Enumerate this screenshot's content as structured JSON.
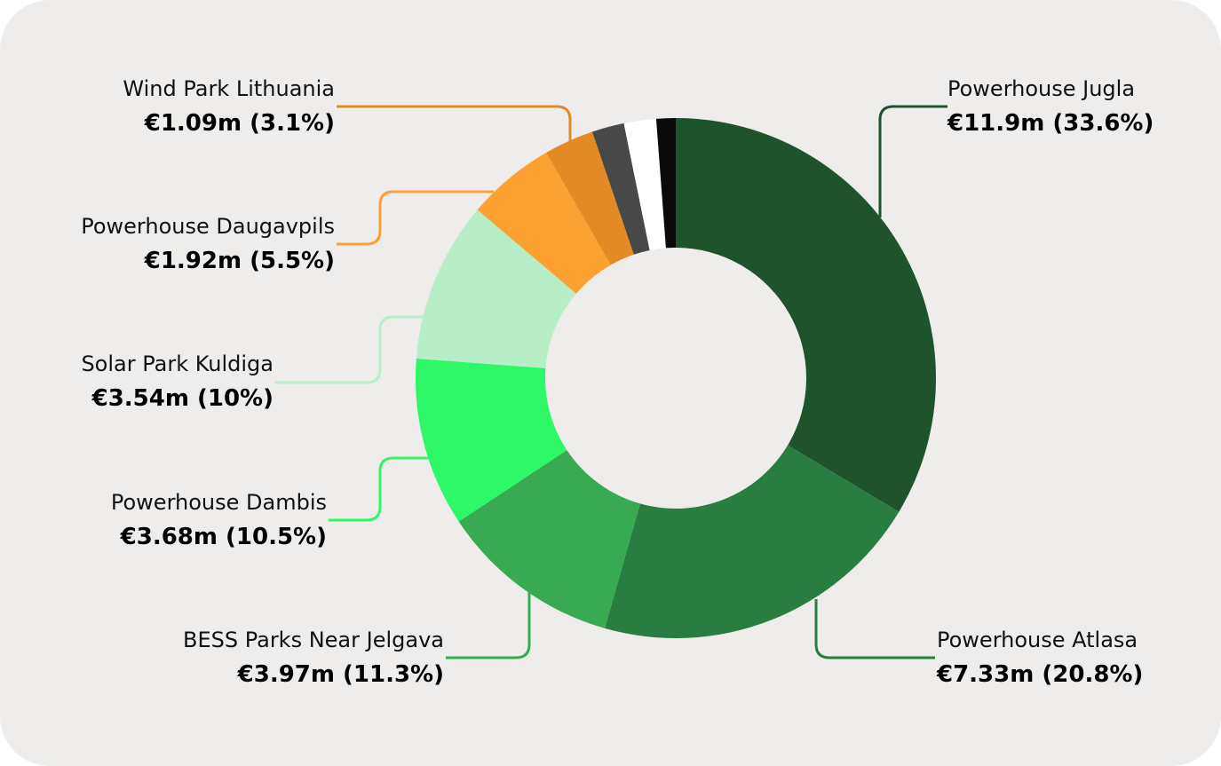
{
  "chart_data": {
    "type": "pie",
    "donut": true,
    "slices": [
      {
        "label": "Powerhouse Jugla",
        "value_text": "€11.9m (33.6%)",
        "value": 11.9,
        "percent": 33.6,
        "color": "#1f532e"
      },
      {
        "label": "Powerhouse Atlasa",
        "value_text": "€7.33m (20.8%)",
        "value": 7.33,
        "percent": 20.8,
        "color": "#2a7d41"
      },
      {
        "label": "BESS Parks Near Jelgava",
        "value_text": "€3.97m (11.3%)",
        "value": 3.97,
        "percent": 11.3,
        "color": "#37aa52"
      },
      {
        "label": "Powerhouse Dambis",
        "value_text": "€3.68m (10.5%)",
        "value": 3.68,
        "percent": 10.5,
        "color": "#2ef868"
      },
      {
        "label": "Solar Park Kuldiga",
        "value_text": "€3.54m (10%)",
        "value": 3.54,
        "percent": 10.0,
        "color": "#b8eec7"
      },
      {
        "label": "Powerhouse Daugavpils",
        "value_text": "€1.92m (5.5%)",
        "value": 1.92,
        "percent": 5.5,
        "color": "#fca131"
      },
      {
        "label": "Wind Park Lithuania",
        "value_text": "€1.09m (3.1%)",
        "value": 1.09,
        "percent": 3.1,
        "color": "#e48a24"
      },
      {
        "label": "",
        "value_text": "",
        "value": null,
        "percent": 2.0,
        "color": "#484848"
      },
      {
        "label": "",
        "value_text": "",
        "value": null,
        "percent": 2.0,
        "color": "#ffffff"
      },
      {
        "label": "",
        "value_text": "",
        "value": null,
        "percent": 1.2,
        "color": "#0a0a0a"
      }
    ]
  }
}
